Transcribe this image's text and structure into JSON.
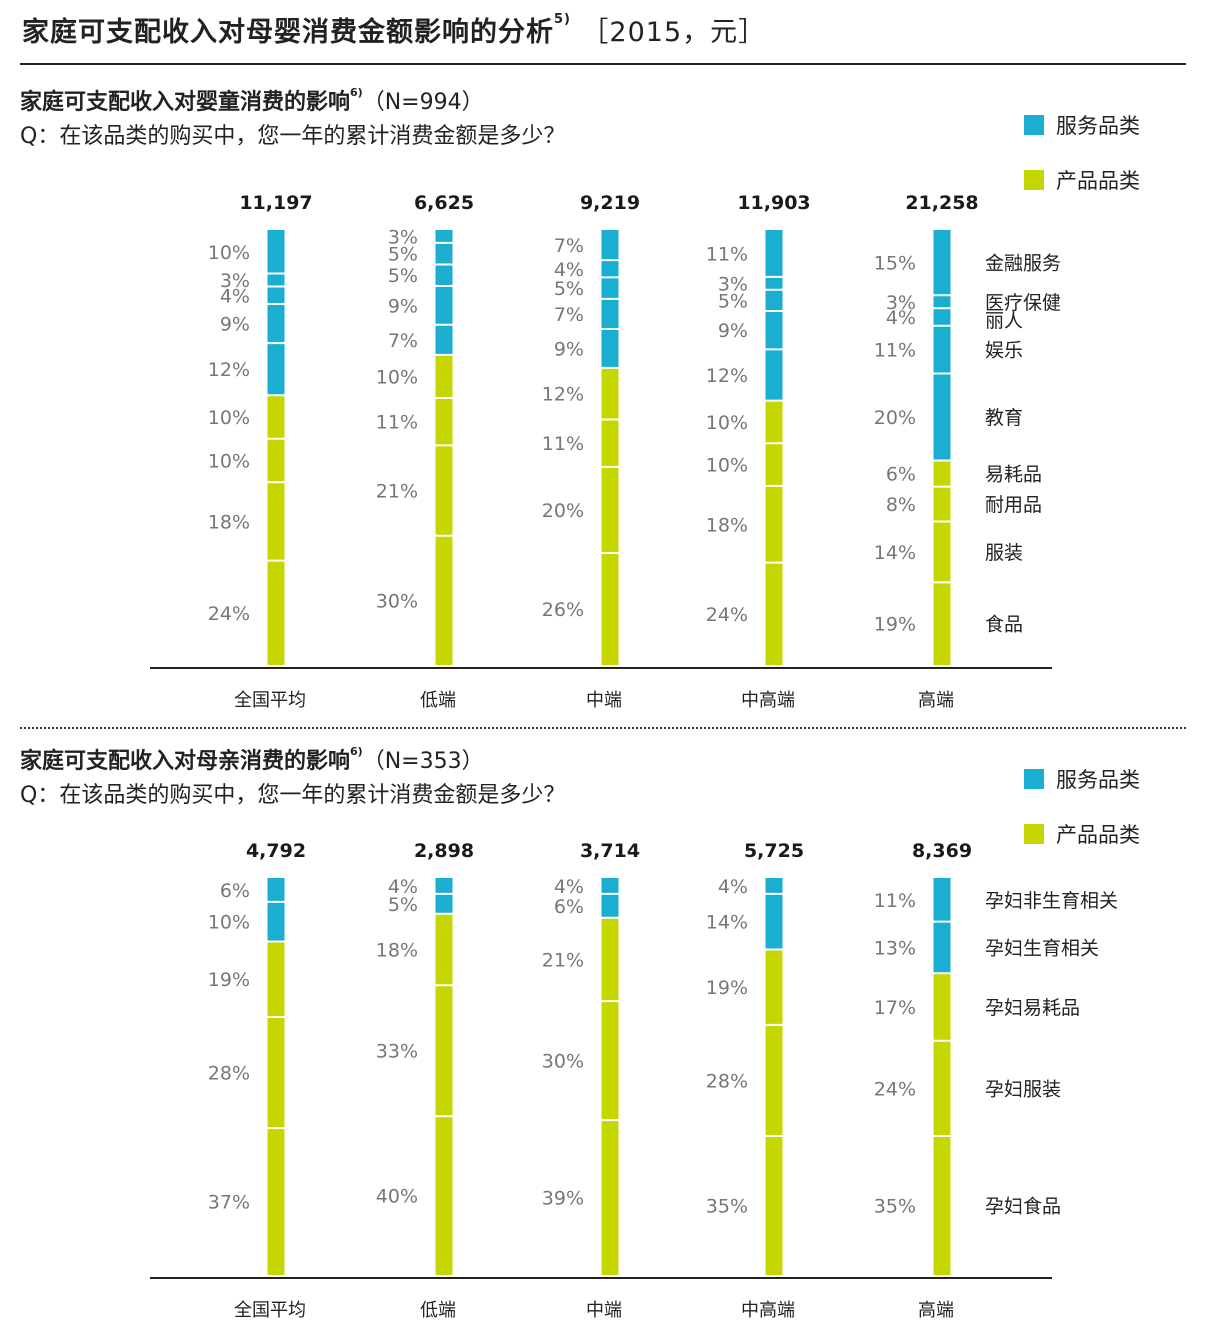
{
  "page": {
    "title": "家庭可支配收入对母婴消费金额影响的分析",
    "title_sup": "5)",
    "title_note": "［2015，元］"
  },
  "legend": {
    "service": "服务品类",
    "product": "产品品类"
  },
  "colors": {
    "service": "#1aaed1",
    "product": "#c5d600"
  },
  "baby": {
    "subtitle": "家庭可支配收入对婴童消费的影响",
    "subtitle_sup": "6)",
    "n": "（N=994）",
    "question": "Q：在该品类的购买中，您一年的累计消费金额是多少？"
  },
  "mother": {
    "subtitle": "家庭可支配收入对母亲消费的影响",
    "subtitle_sup": "6)",
    "n": "（N=353）",
    "question": "Q：在该品类的购买中，您一年的累计消费金额是多少？"
  },
  "chart_data": [
    {
      "type": "bar",
      "stacked": true,
      "unit": "%",
      "categories": [
        "全国平均",
        "低端",
        "中端",
        "中高端",
        "高端"
      ],
      "totals": [
        "11,197",
        "6,625",
        "9,219",
        "11,903",
        "21,258"
      ],
      "segment_labels": [
        "金融服务",
        "医疗保健",
        "丽人",
        "娱乐",
        "教育",
        "易耗品",
        "耐用品",
        "服装",
        "食品"
      ],
      "segment_groups": [
        "service",
        "service",
        "service",
        "service",
        "service",
        "product",
        "product",
        "product",
        "product"
      ],
      "values": [
        [
          10,
          3,
          4,
          9,
          12,
          10,
          10,
          18,
          24
        ],
        [
          3,
          5,
          5,
          9,
          7,
          10,
          11,
          21,
          30
        ],
        [
          7,
          4,
          5,
          7,
          9,
          12,
          11,
          20,
          26
        ],
        [
          11,
          3,
          5,
          9,
          12,
          10,
          10,
          18,
          24
        ],
        [
          15,
          3,
          4,
          11,
          20,
          6,
          8,
          14,
          19
        ]
      ]
    },
    {
      "type": "bar",
      "stacked": true,
      "unit": "%",
      "categories": [
        "全国平均",
        "低端",
        "中端",
        "中高端",
        "高端"
      ],
      "totals": [
        "4,792",
        "2,898",
        "3,714",
        "5,725",
        "8,369"
      ],
      "segment_labels": [
        "孕妇非生育相关",
        "孕妇生育相关",
        "孕妇易耗品",
        "孕妇服装",
        "孕妇食品"
      ],
      "segment_groups": [
        "service",
        "service",
        "product",
        "product",
        "product"
      ],
      "values": [
        [
          6,
          10,
          19,
          28,
          37
        ],
        [
          4,
          5,
          18,
          33,
          40
        ],
        [
          4,
          6,
          21,
          30,
          39
        ],
        [
          4,
          14,
          19,
          28,
          35
        ],
        [
          11,
          13,
          17,
          24,
          35
        ]
      ]
    }
  ]
}
